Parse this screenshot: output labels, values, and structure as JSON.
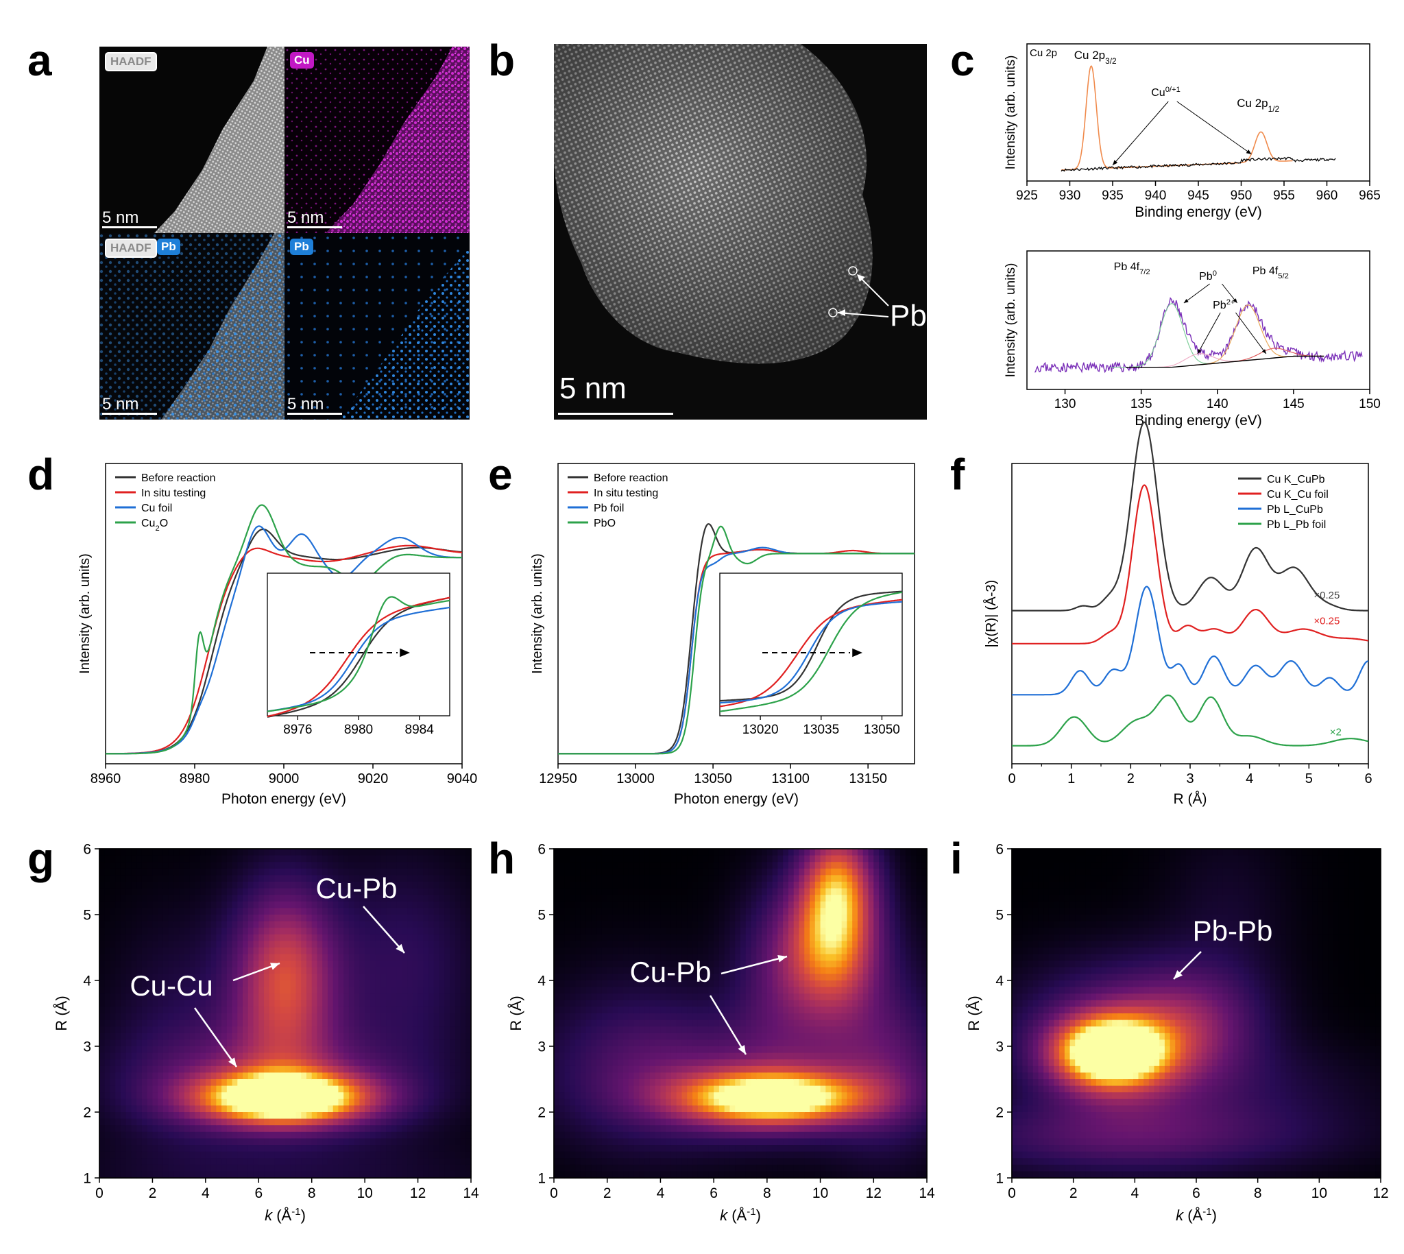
{
  "panels": {
    "a": "a",
    "b": "b",
    "c": "c",
    "d": "d",
    "e": "e",
    "f": "f",
    "g": "g",
    "h": "h",
    "i": "i"
  },
  "panel_a": {
    "haadf": "HAADF",
    "cu": "Cu",
    "pb": "Pb",
    "scale": "5 nm",
    "colors": {
      "cu": "#c218c4",
      "pb": "#1e7fd8"
    }
  },
  "panel_b": {
    "pb_label": "Pb",
    "scale": "5 nm"
  },
  "chart_data": [
    {
      "id": "c-top",
      "type": "line",
      "title": "Cu 2p",
      "xlabel": "Binding energy (eV)",
      "ylabel": "Intensity (arb. units)",
      "xlim": [
        925,
        965
      ],
      "x_ticks": [
        925,
        930,
        935,
        940,
        945,
        950,
        955,
        960,
        965
      ],
      "annotations": [
        "Cu 2p3/2",
        "Cu0/+1",
        "Cu 2p1/2"
      ],
      "peaks": [
        {
          "label": "Cu 2p3/2",
          "x": 932.5
        },
        {
          "label": "Cu 2p1/2",
          "x": 952.3
        }
      ],
      "series": [
        {
          "name": "",
          "color": "#f08a4b",
          "x": [
            929,
            931,
            932.5,
            934,
            936,
            940,
            945,
            950,
            952.3,
            954,
            956,
            961
          ]
        },
        {
          "name": "",
          "color": "#000000",
          "x": [
            929,
            961
          ]
        }
      ]
    },
    {
      "id": "c-bottom",
      "type": "line",
      "xlabel": "Binding energy (eV)",
      "ylabel": "Intensity (arb. units)",
      "xlim": [
        127.5,
        150
      ],
      "x_ticks": [
        130,
        135,
        140,
        145,
        150
      ],
      "annotations": [
        "Pb 4f7/2",
        "Pb0",
        "Pb2+",
        "Pb 4f5/2"
      ],
      "peaks": [
        {
          "label": "Pb 4f7/2",
          "x": 137.0
        },
        {
          "label": "Pb 4f5/2",
          "x": 142.0
        }
      ],
      "series": [
        {
          "name": "",
          "color": "#7a2fb8",
          "x": [
            128,
            149.5
          ]
        }
      ]
    },
    {
      "id": "d",
      "type": "line",
      "xlabel": "Photon energy (eV)",
      "ylabel": "Intensity (arb. units)",
      "xlim": [
        8960,
        9040
      ],
      "x_ticks": [
        8960,
        8980,
        9000,
        9020,
        9040
      ],
      "inset": {
        "x_ticks": [
          8976,
          8980,
          8984
        ],
        "xlim": [
          8974,
          8986
        ]
      },
      "series": [
        {
          "name": "Before reaction",
          "color": "#333333"
        },
        {
          "name": "In situ testing",
          "color": "#e02020"
        },
        {
          "name": "Cu foil",
          "color": "#1f6fd6"
        },
        {
          "name": "Cu2O",
          "color": "#2ca24a"
        }
      ]
    },
    {
      "id": "e",
      "type": "line",
      "xlabel": "Photon energy (eV)",
      "ylabel": "Intensity (arb. units)",
      "xlim": [
        12950,
        13180
      ],
      "x_ticks": [
        12950,
        13000,
        13050,
        13100,
        13150
      ],
      "inset": {
        "x_ticks": [
          13020,
          13035,
          13050
        ],
        "xlim": [
          13010,
          13055
        ]
      },
      "series": [
        {
          "name": "Before reaction",
          "color": "#333333"
        },
        {
          "name": "In situ testing",
          "color": "#e02020"
        },
        {
          "name": "Pb foil",
          "color": "#1f6fd6"
        },
        {
          "name": "PbO",
          "color": "#2ca24a"
        }
      ]
    },
    {
      "id": "f",
      "type": "line",
      "xlabel": "R (Å)",
      "ylabel": "|χ(R)| (Å-3)",
      "xlim": [
        0,
        6
      ],
      "x_ticks": [
        0,
        1,
        2,
        3,
        4,
        5,
        6
      ],
      "scale_labels": [
        "×0.25",
        "×0.25",
        "×2"
      ],
      "series": [
        {
          "name": "Cu K_CuPb",
          "color": "#333333",
          "peak_R": 2.23
        },
        {
          "name": "Cu K_Cu foil",
          "color": "#e02020",
          "peak_R": 2.23
        },
        {
          "name": "Pb L_CuPb",
          "color": "#1f6fd6",
          "peak_R": 2.25
        },
        {
          "name": "Pb L_Pb foil",
          "color": "#2ca24a",
          "peak_R": 2.7
        }
      ]
    },
    {
      "id": "g",
      "type": "heatmap",
      "xlabel": "k (Å-1)",
      "ylabel": "R (Å)",
      "xlim": [
        0,
        14
      ],
      "ylim": [
        1,
        6
      ],
      "x_ticks": [
        0,
        2,
        4,
        6,
        8,
        10,
        12,
        14
      ],
      "y_ticks": [
        1,
        2,
        3,
        4,
        5,
        6
      ],
      "annotations": [
        "Cu-Cu",
        "Cu-Pb"
      ],
      "maxima": [
        {
          "k": 7.0,
          "R": 2.2
        },
        {
          "k": 7.0,
          "R": 4.5
        }
      ]
    },
    {
      "id": "h",
      "type": "heatmap",
      "xlabel": "k (Å-1)",
      "ylabel": "R (Å)",
      "xlim": [
        0,
        14
      ],
      "ylim": [
        1,
        6
      ],
      "x_ticks": [
        0,
        2,
        4,
        6,
        8,
        10,
        12,
        14
      ],
      "y_ticks": [
        1,
        2,
        3,
        4,
        5,
        6
      ],
      "annotations": [
        "Cu-Pb"
      ],
      "maxima": [
        {
          "k": 8.2,
          "R": 2.2
        },
        {
          "k": 10.5,
          "R": 4.6
        }
      ]
    },
    {
      "id": "i",
      "type": "heatmap",
      "xlabel": "k (Å-1)",
      "ylabel": "R (Å)",
      "xlim": [
        0,
        12
      ],
      "ylim": [
        1,
        6
      ],
      "x_ticks": [
        0,
        2,
        4,
        6,
        8,
        10,
        12
      ],
      "y_ticks": [
        1,
        2,
        3,
        4,
        5,
        6
      ],
      "annotations": [
        "Pb-Pb"
      ],
      "maxima": [
        {
          "k": 3.2,
          "R": 2.9
        }
      ]
    }
  ]
}
